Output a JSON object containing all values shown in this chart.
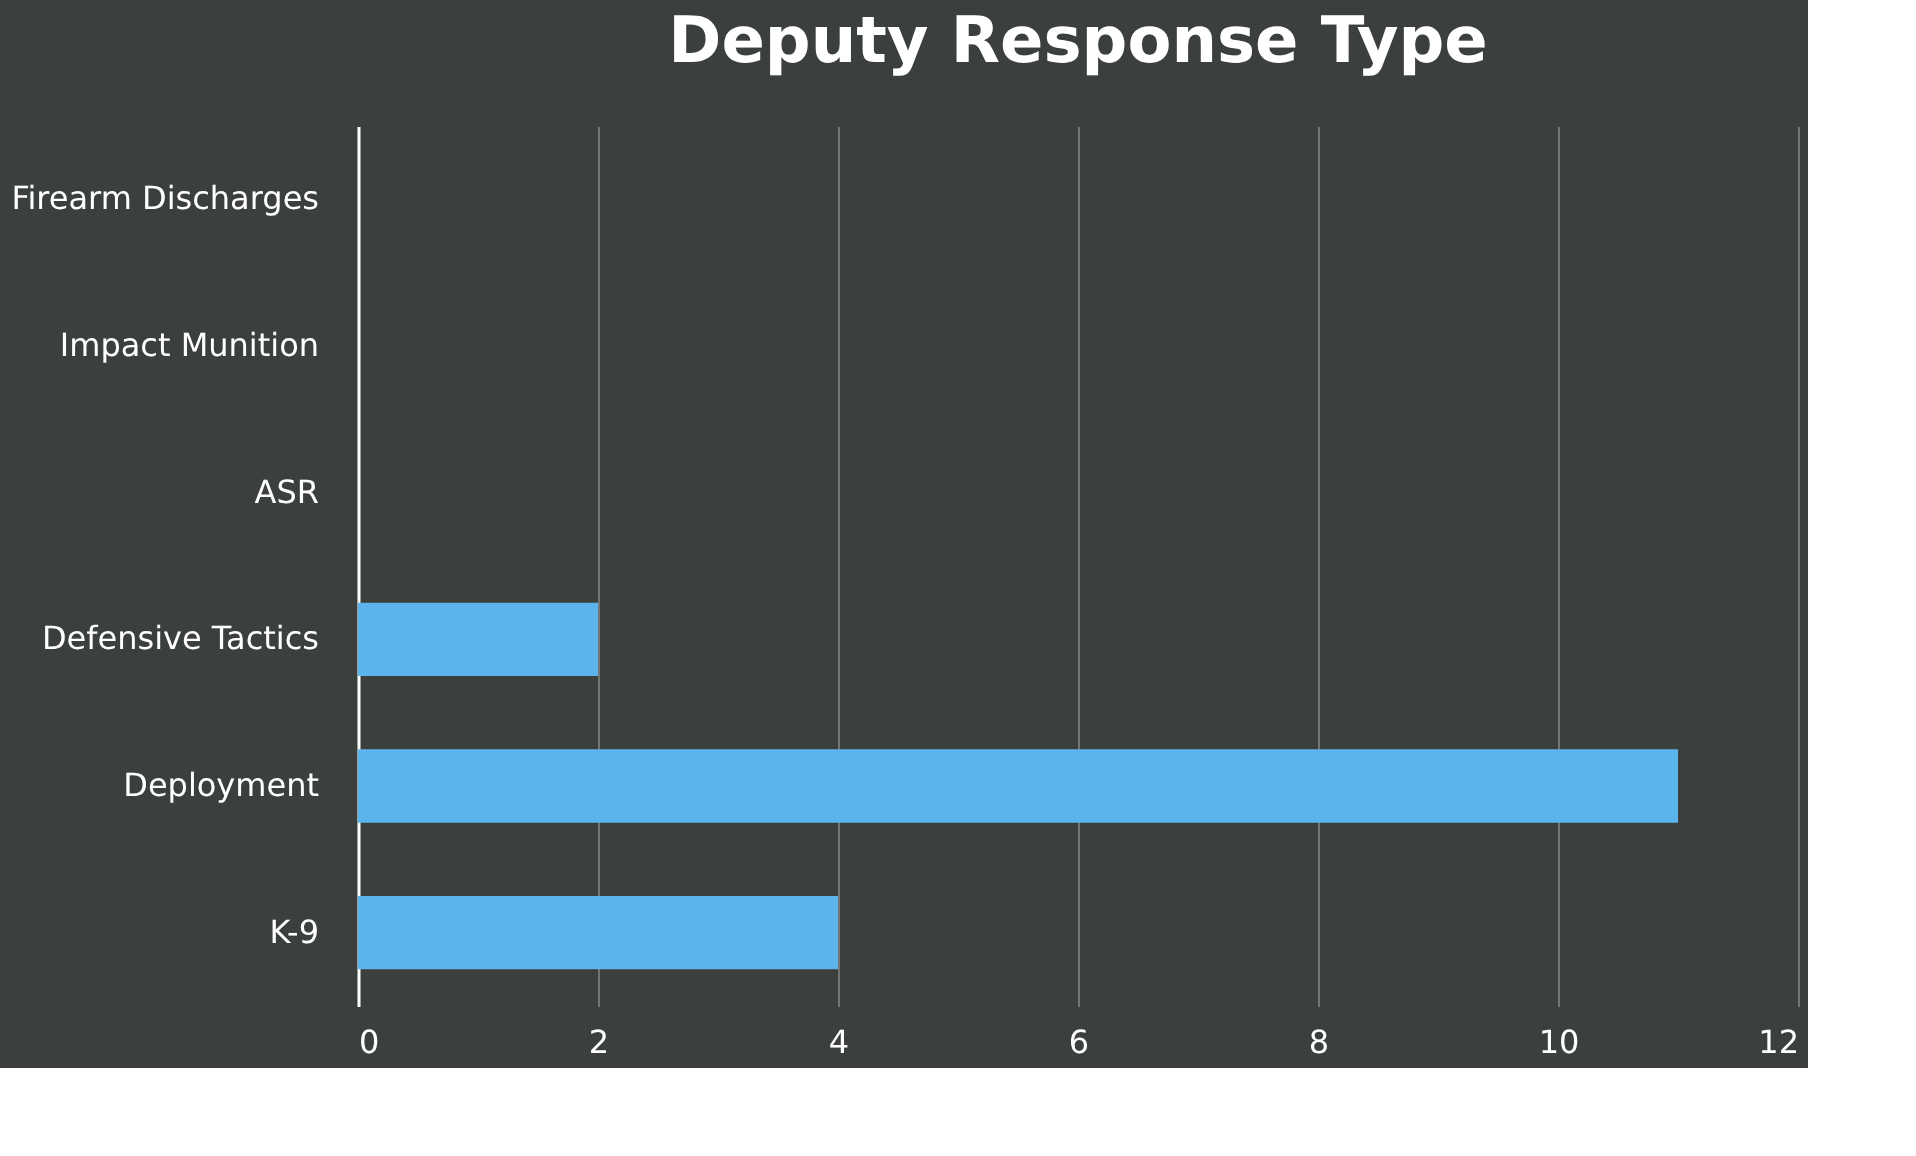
{
  "chart_data": {
    "type": "bar",
    "orientation": "horizontal",
    "title": "Deputy Response Type",
    "categories": [
      "Firearm Discharges",
      "Impact Munition",
      "ASR",
      "Defensive Tactics",
      "Deployment",
      "K-9"
    ],
    "values": [
      0,
      0,
      0,
      2,
      11,
      4
    ],
    "color": "#5cb4ec",
    "xlim": [
      0,
      12
    ],
    "xticks": [
      0,
      2,
      4,
      6,
      8,
      10,
      12
    ],
    "grid": "x"
  }
}
